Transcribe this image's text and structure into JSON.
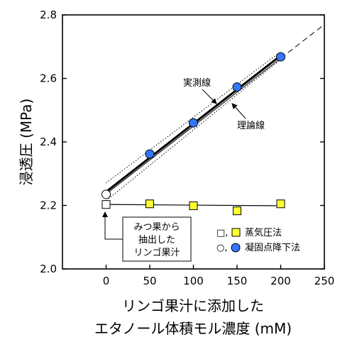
{
  "chart_data": {
    "type": "scatter",
    "xlabel_line1": "リンゴ果汁に添加した",
    "xlabel_line2": "エタノール体積モル濃度 (mM)",
    "ylabel": "浸透圧 (MPa)",
    "xlim": [
      -50,
      250
    ],
    "ylim": [
      2.0,
      2.8
    ],
    "x_ticks": [
      0,
      50,
      100,
      150,
      200,
      250
    ],
    "y_ticks": [
      "2.0",
      "2.2",
      "2.4",
      "2.6",
      "2.8"
    ],
    "grid": false,
    "series": [
      {
        "name": "蒸気圧法",
        "marker": "square",
        "x": [
          0,
          50,
          100,
          150,
          200
        ],
        "y": [
          2.203,
          2.205,
          2.199,
          2.183,
          2.205
        ],
        "first_point_open": true,
        "fill": "#ffff33"
      },
      {
        "name": "凝固点降下法",
        "marker": "circle",
        "x": [
          0,
          50,
          100,
          150,
          200
        ],
        "y": [
          2.235,
          2.362,
          2.46,
          2.573,
          2.668
        ],
        "first_point_open": true,
        "fill": "#3377ff"
      }
    ],
    "lines": {
      "measured": {
        "label": "実測線",
        "x": [
          0,
          200
        ],
        "y": [
          2.243,
          2.672
        ]
      },
      "theoretical": {
        "label": "理論線",
        "x": [
          0,
          250
        ],
        "y": [
          2.236,
          2.77
        ]
      },
      "flat_fit": {
        "x": [
          0,
          200
        ],
        "y": [
          2.203,
          2.199
        ]
      }
    },
    "legend_square_prefix": "□,",
    "legend_circle_prefix": "○,",
    "legend_position": "bottom-right",
    "annotation_box": {
      "lines": [
        "みつ果から",
        "抽出した",
        "リンゴ果汁"
      ]
    }
  },
  "colors": {
    "square_fill": "#ffff33",
    "circle_fill": "#3377ff",
    "axis": "#000000"
  }
}
